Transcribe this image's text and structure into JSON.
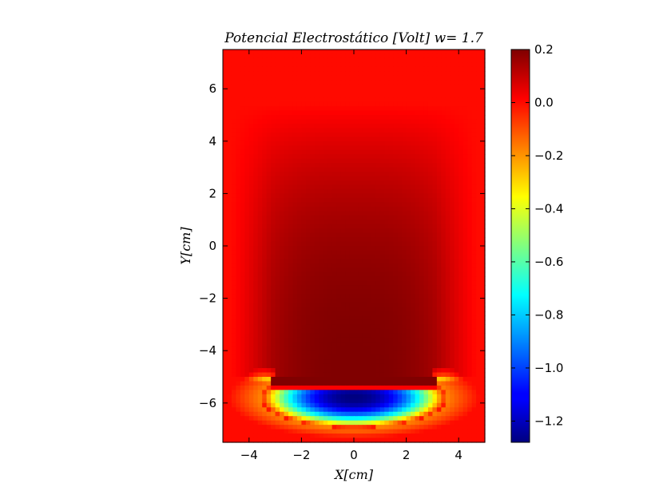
{
  "chart_data": [
    {
      "type": "heatmap",
      "title": "Potencial Electrostático [Volt] w= 1.7",
      "xlabel": "X[cm]",
      "ylabel": "Y[cm]",
      "xlim": [
        -5,
        5
      ],
      "ylim": [
        -7.5,
        7.5
      ],
      "xticks": [
        -4,
        -2,
        0,
        2,
        4
      ],
      "yticks": [
        -6,
        -4,
        -2,
        0,
        2,
        4,
        6
      ],
      "grid": false,
      "colormap": "jet",
      "value_range": [
        -1.28,
        0.2
      ],
      "background_value": 0.0,
      "regions": [
        {
          "name": "positive-plate",
          "x": [
            -3.1,
            3.1
          ],
          "y": -5.1,
          "value": 0.2
        },
        {
          "name": "negative-plate",
          "x": [
            -3.1,
            3.1
          ],
          "y": -5.5,
          "value": -1.28
        },
        {
          "name": "max-potential-center",
          "x": 0,
          "y": -0.5,
          "value": 0.19
        }
      ]
    },
    {
      "type": "colorbar",
      "ticks": [
        "0.2",
        "0.0",
        "−0.2",
        "−0.4",
        "−0.6",
        "−0.8",
        "−1.0",
        "−1.2"
      ],
      "tick_values": [
        0.2,
        0.0,
        -0.2,
        -0.4,
        -0.6,
        -0.8,
        -1.0,
        -1.2
      ],
      "range": [
        -1.28,
        0.2
      ]
    }
  ],
  "colors": {
    "jet_dark_red": "#7f0000",
    "jet_red": "#ff1200",
    "jet_yellow": "#ffff00",
    "jet_cyan": "#00ffff",
    "jet_blue": "#0000ff",
    "jet_dark_blue": "#00007f"
  }
}
